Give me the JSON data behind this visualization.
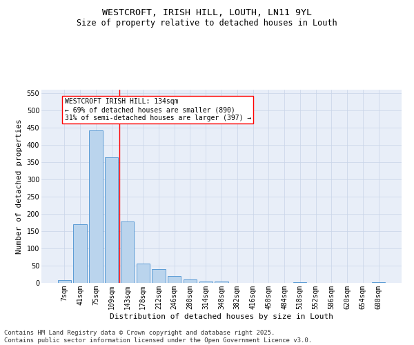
{
  "title_line1": "WESTCROFT, IRISH HILL, LOUTH, LN11 9YL",
  "title_line2": "Size of property relative to detached houses in Louth",
  "xlabel": "Distribution of detached houses by size in Louth",
  "ylabel": "Number of detached properties",
  "categories": [
    "7sqm",
    "41sqm",
    "75sqm",
    "109sqm",
    "143sqm",
    "178sqm",
    "212sqm",
    "246sqm",
    "280sqm",
    "314sqm",
    "348sqm",
    "382sqm",
    "416sqm",
    "450sqm",
    "484sqm",
    "518sqm",
    "552sqm",
    "586sqm",
    "620sqm",
    "654sqm",
    "688sqm"
  ],
  "values": [
    8,
    170,
    443,
    365,
    178,
    57,
    40,
    20,
    10,
    5,
    5,
    0,
    0,
    0,
    0,
    3,
    0,
    0,
    0,
    0,
    3
  ],
  "bar_color": "#bad4ed",
  "bar_edge_color": "#5b9bd5",
  "bar_width": 0.85,
  "vline_x": 3.5,
  "vline_color": "red",
  "annotation_box_text": "WESTCROFT IRISH HILL: 134sqm\n← 69% of detached houses are smaller (890)\n31% of semi-detached houses are larger (397) →",
  "annotation_box_color": "red",
  "annotation_box_facecolor": "white",
  "ylim": [
    0,
    560
  ],
  "yticks": [
    0,
    50,
    100,
    150,
    200,
    250,
    300,
    350,
    400,
    450,
    500,
    550
  ],
  "grid_color": "#c8d4e8",
  "background_color": "#e8eef8",
  "footer_line1": "Contains HM Land Registry data © Crown copyright and database right 2025.",
  "footer_line2": "Contains public sector information licensed under the Open Government Licence v3.0.",
  "title_fontsize": 9.5,
  "subtitle_fontsize": 8.5,
  "axis_label_fontsize": 8,
  "tick_fontsize": 7,
  "annotation_fontsize": 7,
  "footer_fontsize": 6.5
}
